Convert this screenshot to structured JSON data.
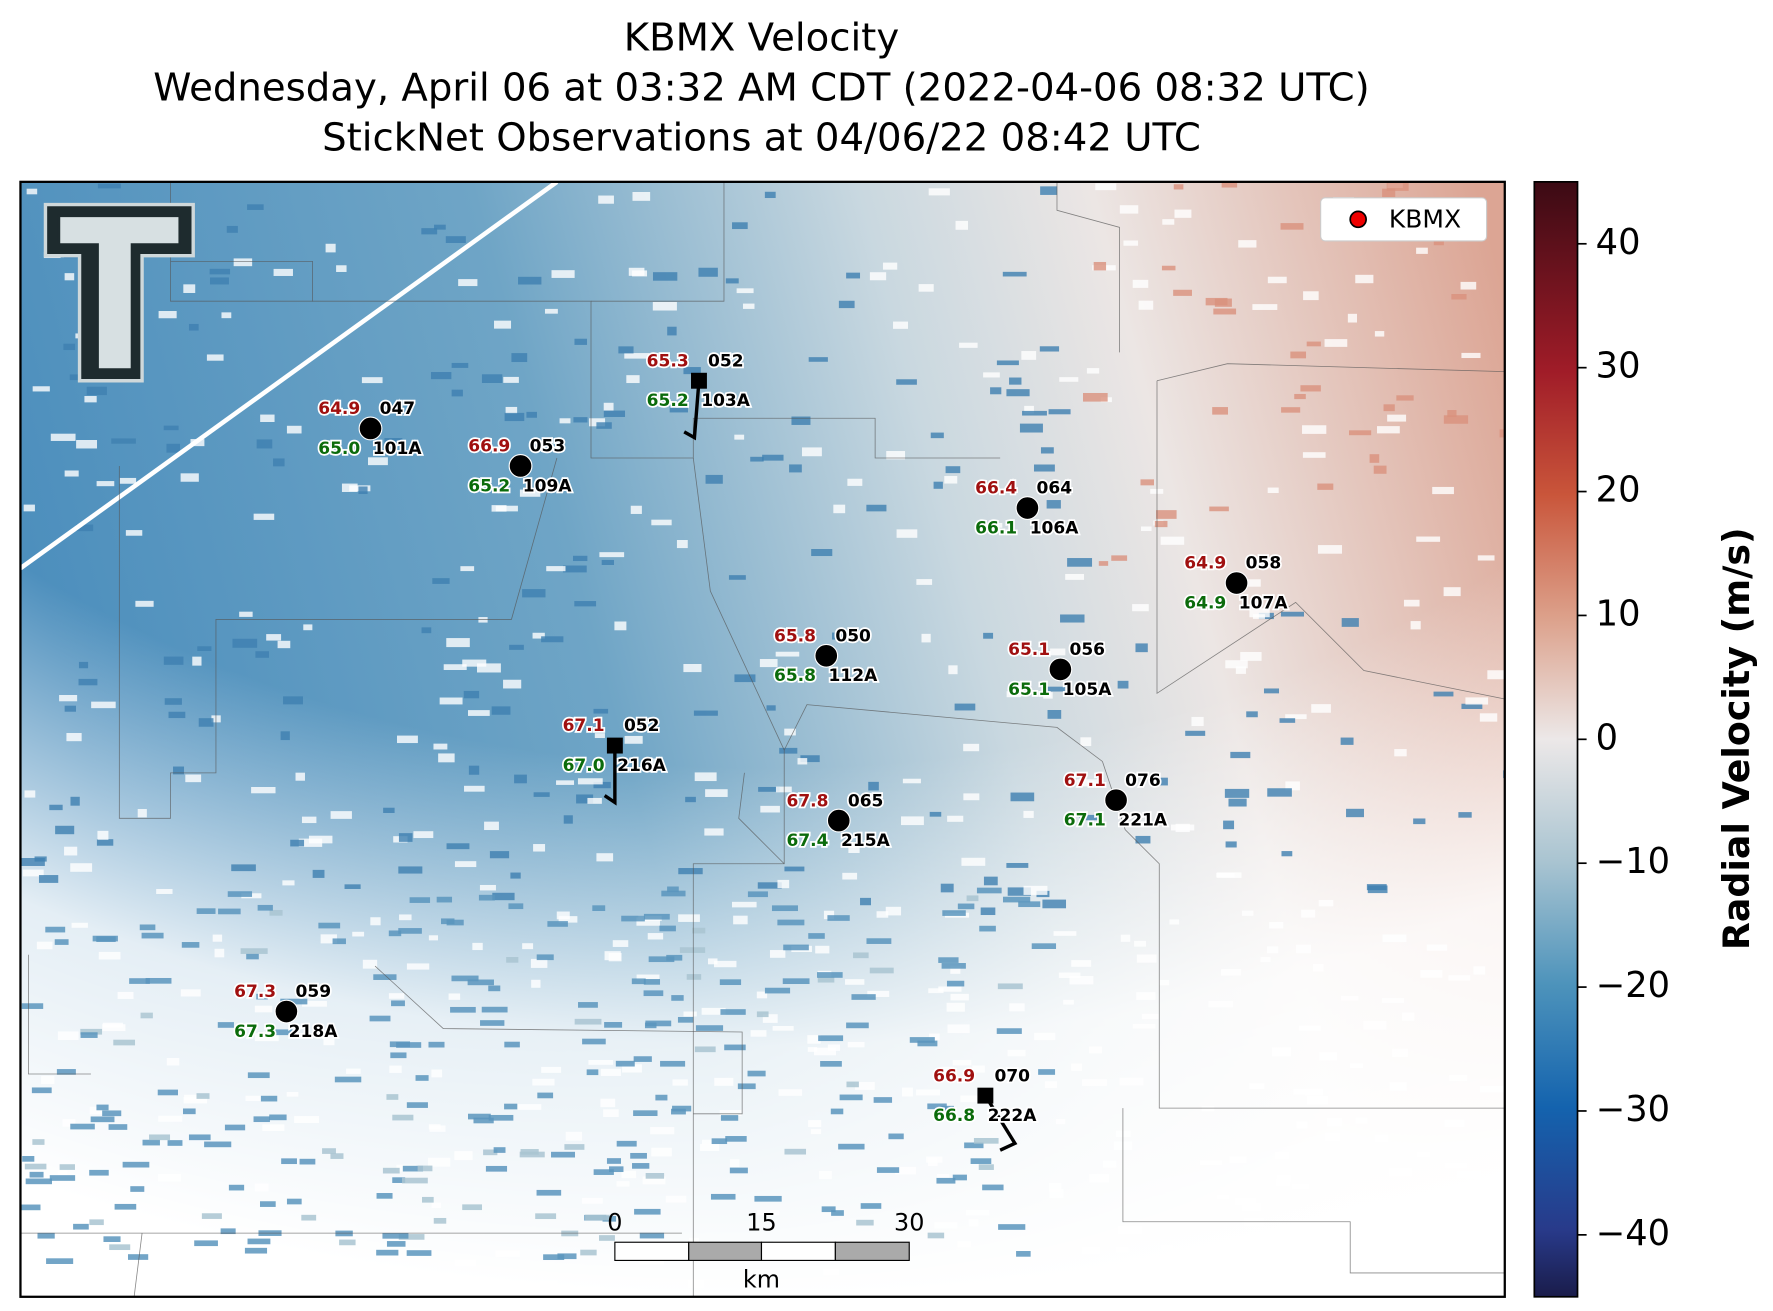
{
  "title": {
    "lines": [
      "KBMX Velocity",
      "Wednesday, April 06 at 03:32 AM CDT (2022-04-06 08:32 UTC)",
      "StickNet Observations at 04/06/22 08:42 UTC"
    ]
  },
  "legend": {
    "label": "KBMX"
  },
  "stations": [
    {
      "temperature": "65.3",
      "value": "052",
      "dewpoint": "65.2",
      "id": "103A"
    },
    {
      "temperature": "64.9",
      "value": "047",
      "dewpoint": "65.0",
      "id": "101A"
    },
    {
      "temperature": "66.9",
      "value": "053",
      "dewpoint": "65.2",
      "id": "109A"
    },
    {
      "temperature": "66.4",
      "value": "064",
      "dewpoint": "66.1",
      "id": "106A"
    },
    {
      "temperature": "64.9",
      "value": "058",
      "dewpoint": "64.9",
      "id": "107A"
    },
    {
      "temperature": "65.8",
      "value": "050",
      "dewpoint": "65.8",
      "id": "112A"
    },
    {
      "temperature": "65.1",
      "value": "056",
      "dewpoint": "65.1",
      "id": "105A"
    },
    {
      "temperature": "67.1",
      "value": "052",
      "dewpoint": "67.0",
      "id": "216A"
    },
    {
      "temperature": "67.8",
      "value": "065",
      "dewpoint": "67.4",
      "id": "215A"
    },
    {
      "temperature": "67.1",
      "value": "076",
      "dewpoint": "67.1",
      "id": "221A"
    },
    {
      "temperature": "67.3",
      "value": "059",
      "dewpoint": "67.3",
      "id": "218A"
    },
    {
      "temperature": "66.9",
      "value": "070",
      "dewpoint": "66.8",
      "id": "222A"
    }
  ],
  "scale_bar": {
    "labels": [
      "0",
      "15",
      "30"
    ],
    "unit": "km"
  },
  "colorbar": {
    "label": "Radial Velocity (m/s)",
    "lim": [
      -45,
      45
    ],
    "ticks": [
      {
        "value": -40,
        "label": "−40"
      },
      {
        "value": -30,
        "label": "−30"
      },
      {
        "value": -20,
        "label": "−20"
      },
      {
        "value": -10,
        "label": "−10"
      },
      0,
      10,
      20,
      30,
      40
    ]
  }
}
